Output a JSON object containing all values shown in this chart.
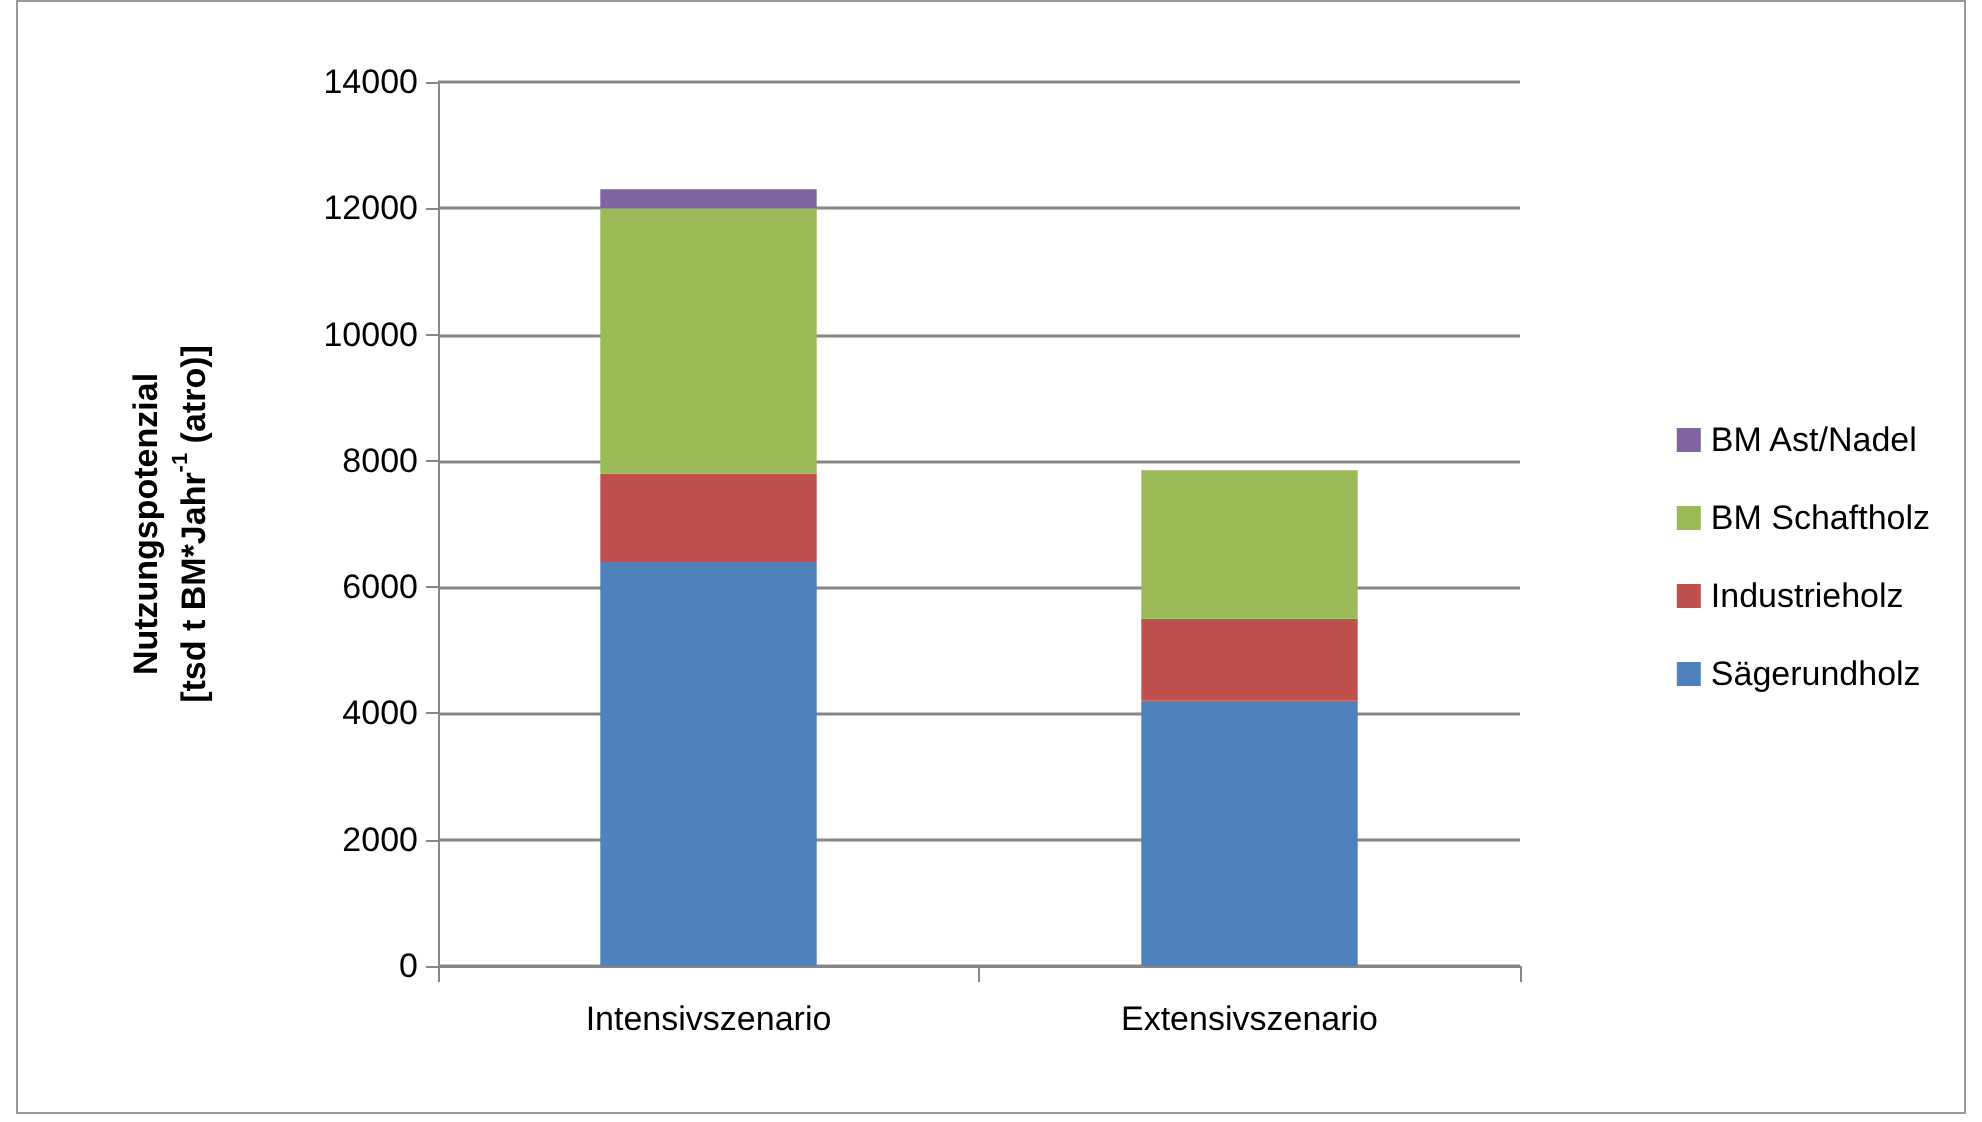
{
  "chart_data": {
    "type": "bar",
    "stacked": true,
    "ylabel": "Nutzungspotenzial\n[tsd t BM*Jahr$^{-1}$ (atro)]",
    "categories": [
      "Intensivszenario",
      "Extensivszenario"
    ],
    "series": [
      {
        "name": "Sägerundholz",
        "color": "#4f81bd",
        "values": [
          6400,
          4200
        ]
      },
      {
        "name": "Industrieholz",
        "color": "#c0504d",
        "values": [
          1400,
          1300
        ]
      },
      {
        "name": "BM Schaftholz",
        "color": "#9bbb59",
        "values": [
          4200,
          2350
        ]
      },
      {
        "name": "BM Ast/Nadel",
        "color": "#8064a2",
        "values": [
          300,
          0
        ]
      }
    ],
    "ylim": [
      0,
      14000
    ],
    "yticks": [
      0,
      2000,
      4000,
      6000,
      8000,
      10000,
      12000,
      14000
    ],
    "grid": "y",
    "legend": "right"
  }
}
